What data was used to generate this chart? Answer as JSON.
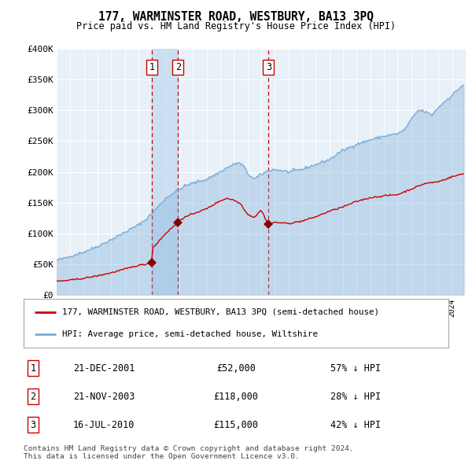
{
  "title": "177, WARMINSTER ROAD, WESTBURY, BA13 3PQ",
  "subtitle": "Price paid vs. HM Land Registry's House Price Index (HPI)",
  "ylim": [
    0,
    400000
  ],
  "yticks": [
    0,
    50000,
    100000,
    150000,
    200000,
    250000,
    300000,
    350000,
    400000
  ],
  "ytick_labels": [
    "£0",
    "£50K",
    "£100K",
    "£150K",
    "£200K",
    "£250K",
    "£300K",
    "£350K",
    "£400K"
  ],
  "xstart_year": 1995,
  "xend_year": 2024,
  "hpi_color": "#7aacd6",
  "hpi_fill_color": "#c8dff2",
  "price_color": "#cc0000",
  "sale_marker_color": "#880000",
  "vline_color": "#cc0000",
  "span_color": "#b8d4ee",
  "transactions": [
    {
      "label": "1",
      "date_num": 2001.97,
      "price": 52000,
      "date_str": "21-DEC-2001",
      "pct": "57% ↓ HPI"
    },
    {
      "label": "2",
      "date_num": 2003.9,
      "price": 118000,
      "date_str": "21-NOV-2003",
      "pct": "28% ↓ HPI"
    },
    {
      "label": "3",
      "date_num": 2010.54,
      "price": 115000,
      "date_str": "16-JUL-2010",
      "pct": "42% ↓ HPI"
    }
  ],
  "legend_line1": "177, WARMINSTER ROAD, WESTBURY, BA13 3PQ (semi-detached house)",
  "legend_line2": "HPI: Average price, semi-detached house, Wiltshire",
  "footnote": "Contains HM Land Registry data © Crown copyright and database right 2024.\nThis data is licensed under the Open Government Licence v3.0.",
  "plot_bg_color": "#e8f0f8"
}
